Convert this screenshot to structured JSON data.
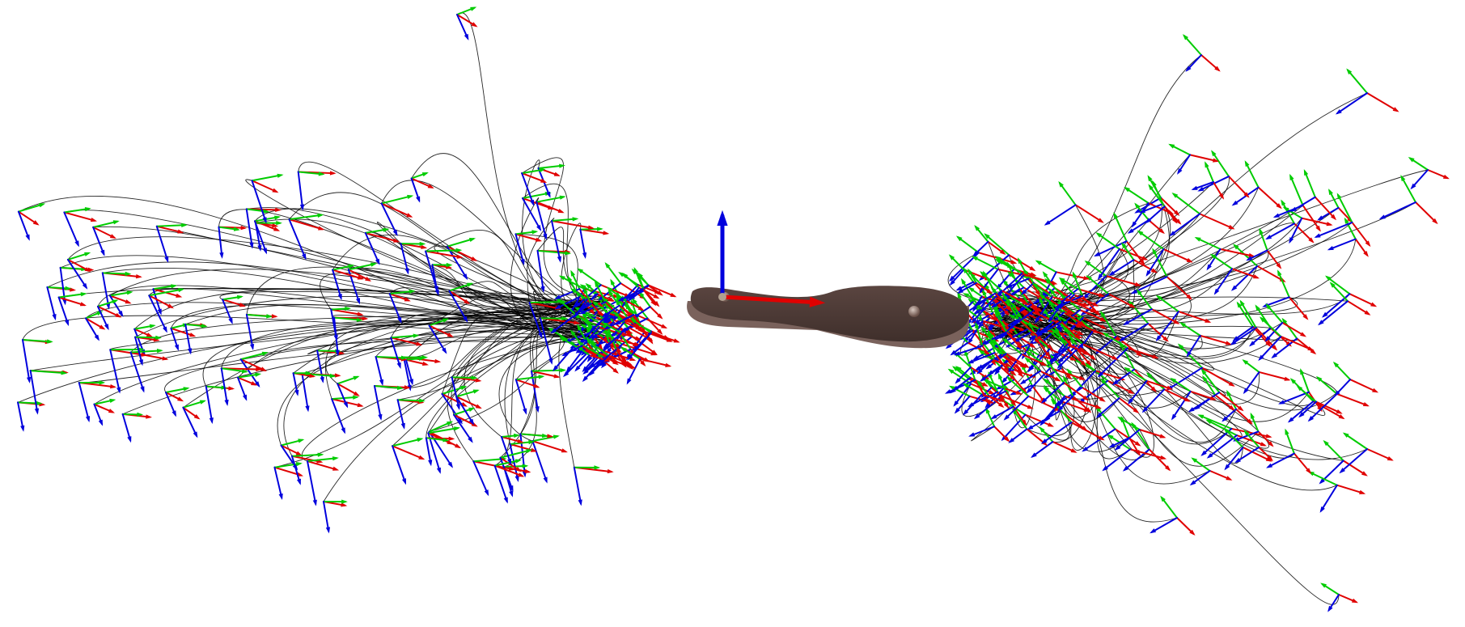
{
  "scene": {
    "background": "#ffffff",
    "axis_colors": {
      "x": "#e00000",
      "y": "#00cc00",
      "z": "#0000dd"
    },
    "trajectory_color": "#000000",
    "object": {
      "name": "insole",
      "color": "#4a3834",
      "edge_color": "#7a625c"
    }
  }
}
